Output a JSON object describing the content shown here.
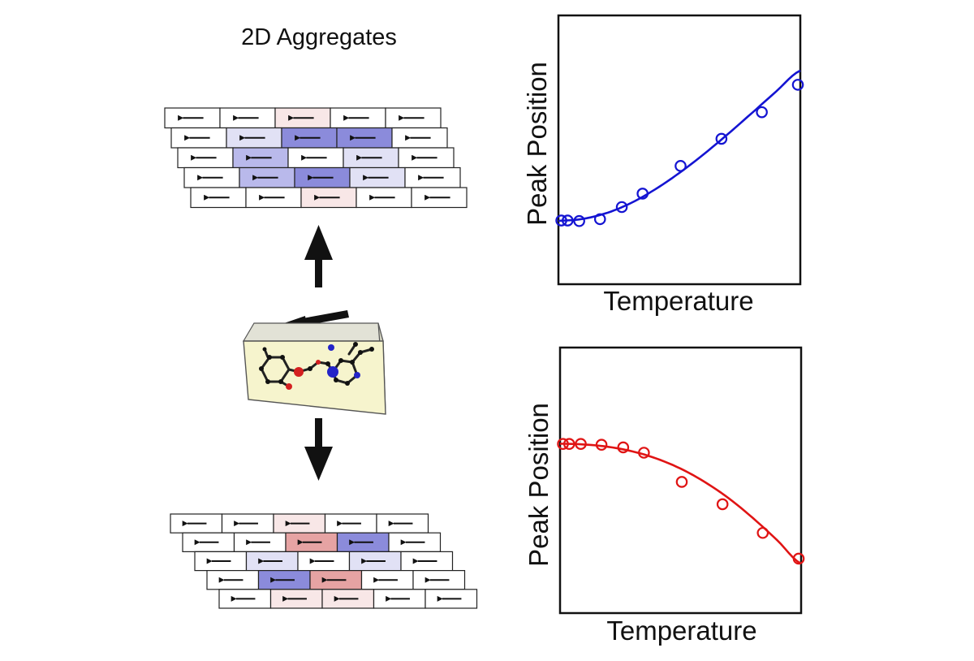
{
  "title": "2D Aggregates",
  "colors": {
    "ink": "#111111",
    "cell_border": "#222222",
    "plot_top": "#1414d2",
    "plot_bottom": "#e01414",
    "blue_strong": "#8b8bdb",
    "blue_medium": "#b9b9eb",
    "blue_light": "#e1e1f5",
    "red_strong": "#e6a3a3",
    "red_light": "#f8e7e7",
    "blank": "#ffffff",
    "molecule_box_face": "#f6f4cd",
    "molecule_box_side": "#d2d2c0"
  },
  "aggregate_top": {
    "rows": [
      [
        "blank",
        "blank",
        "red_light",
        "blank",
        "blank"
      ],
      [
        "blank",
        "blue_light",
        "blue_strong",
        "blue_strong",
        "blank"
      ],
      [
        "blank",
        "blue_medium",
        "blank",
        "blue_light",
        "blank"
      ],
      [
        "blank",
        "blue_medium",
        "blue_strong",
        "blue_light",
        "blank"
      ],
      [
        "blank",
        "blank",
        "red_light",
        "blank",
        "blank"
      ]
    ]
  },
  "aggregate_bottom": {
    "rows": [
      [
        "blank",
        "blank",
        "red_light",
        "blank",
        "blank"
      ],
      [
        "blank",
        "blank",
        "red_strong",
        "blue_strong",
        "blank"
      ],
      [
        "blank",
        "blue_light",
        "blank",
        "blue_light",
        "blank"
      ],
      [
        "blank",
        "blue_strong",
        "red_strong",
        "blank",
        "blank"
      ],
      [
        "blank",
        "red_light",
        "red_light",
        "blank",
        "blank"
      ]
    ]
  },
  "chart_data": [
    {
      "type": "scatter",
      "title": "",
      "xlabel": "Temperature",
      "ylabel": "Peak Position",
      "x_ticks": "none",
      "y_ticks": "none",
      "xlim": [
        0,
        10
      ],
      "ylim": [
        0,
        10
      ],
      "series": [
        {
          "color": "plot_top",
          "marker": "open-circle",
          "x": [
            0.12,
            0.38,
            0.86,
            1.72,
            2.62,
            3.48,
            5.05,
            6.74,
            8.41,
            9.9
          ],
          "y": [
            2.37,
            2.37,
            2.35,
            2.42,
            2.87,
            3.37,
            4.4,
            5.41,
            6.4,
            7.42
          ]
        }
      ],
      "fit": {
        "color": "plot_top",
        "x": [
          0.0,
          1.0,
          2.0,
          3.0,
          4.0,
          5.0,
          6.0,
          7.0,
          8.0,
          9.0,
          10.0
        ],
        "y": [
          2.36,
          2.43,
          2.65,
          3.02,
          3.53,
          4.14,
          4.83,
          5.58,
          6.37,
          7.17,
          7.95
        ]
      }
    },
    {
      "type": "scatter",
      "title": "",
      "xlabel": "Temperature",
      "ylabel": "Peak Position",
      "x_ticks": "none",
      "y_ticks": "none",
      "xlim": [
        0,
        10
      ],
      "ylim": [
        0,
        10
      ],
      "series": [
        {
          "color": "plot_bottom",
          "marker": "open-circle",
          "x": [
            0.12,
            0.38,
            0.86,
            1.72,
            2.62,
            3.48,
            5.05,
            6.74,
            8.41,
            9.9
          ],
          "y": [
            6.37,
            6.37,
            6.37,
            6.34,
            6.24,
            6.04,
            4.94,
            4.1,
            3.02,
            2.05
          ]
        }
      ],
      "fit": {
        "color": "plot_bottom",
        "x": [
          0.0,
          1.0,
          2.0,
          3.0,
          4.0,
          5.0,
          6.0,
          7.0,
          8.0,
          9.0,
          10.0
        ],
        "y": [
          6.38,
          6.35,
          6.26,
          6.09,
          5.82,
          5.44,
          4.94,
          4.32,
          3.58,
          2.75,
          1.86
        ]
      }
    }
  ]
}
